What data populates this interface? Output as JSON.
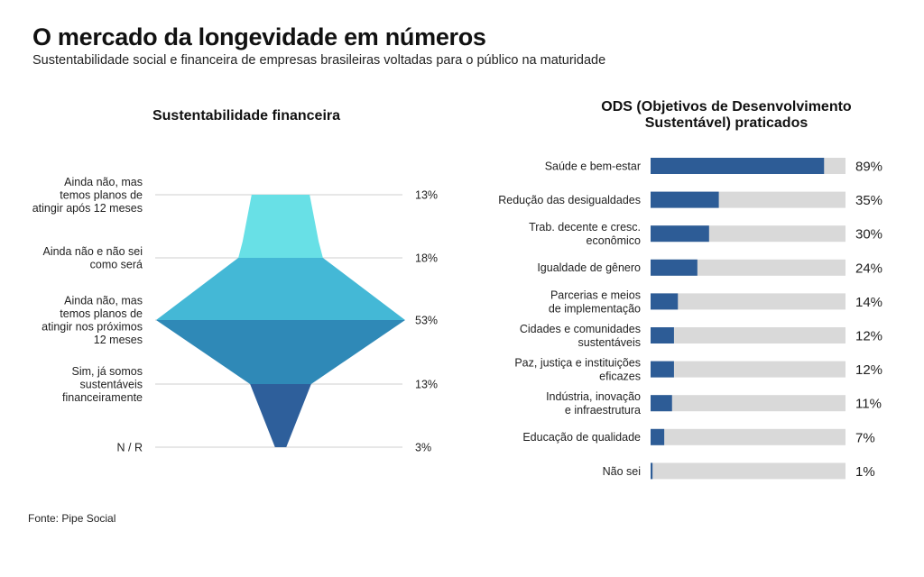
{
  "header": {
    "title": "O mercado da longevidade em números",
    "subtitle": "Sustentabilidade social e financeira de empresas brasileiras voltadas para o público na maturidade"
  },
  "footer": {
    "source": "Fonte: Pipe Social"
  },
  "colors": {
    "funnel": [
      "#68e0e6",
      "#44b8d6",
      "#2f89b7",
      "#2e5f9b"
    ],
    "bar_fill": "#2d5c96",
    "bar_track": "#d9d9d9",
    "gridline": "#cfcfcf"
  },
  "chart_data": [
    {
      "type": "funnel",
      "title": "Sustentabilidade financeira",
      "unit": "%",
      "categories": [
        [
          "Ainda não, mas",
          "temos planos de",
          "atingir após 12 meses"
        ],
        [
          "Ainda não e não sei",
          "como será"
        ],
        [
          "Ainda não, mas",
          "temos planos de",
          "atingir nos próximos",
          "12 meses"
        ],
        [
          "Sim, já somos",
          "sustentáveis",
          "financeiramente"
        ],
        [
          "N / R"
        ]
      ],
      "values": [
        13,
        18,
        53,
        13,
        3
      ],
      "value_labels": [
        "13%",
        "18%",
        "53%",
        "13%",
        "3%"
      ]
    },
    {
      "type": "bar",
      "orientation": "horizontal",
      "title_lines": [
        "ODS (Objetivos de Desenvolvimento",
        "Sustentável) praticados"
      ],
      "unit": "%",
      "xlim": [
        0,
        100
      ],
      "categories": [
        [
          "Saúde e bem-estar"
        ],
        [
          "Redução das desigualdades"
        ],
        [
          "Trab. decente e cresc.",
          "econômico"
        ],
        [
          "Igualdade de gênero"
        ],
        [
          "Parcerias e meios",
          "de implementação"
        ],
        [
          "Cidades e comunidades",
          "sustentáveis"
        ],
        [
          "Paz, justiça e instituições",
          "eficazes"
        ],
        [
          "Indústria, inovação",
          "e infraestrutura"
        ],
        [
          "Educação de qualidade"
        ],
        [
          "Não sei"
        ]
      ],
      "values": [
        89,
        35,
        30,
        24,
        14,
        12,
        12,
        11,
        7,
        1
      ],
      "value_labels": [
        "89%",
        "35%",
        "30%",
        "24%",
        "14%",
        "12%",
        "12%",
        "11%",
        "7%",
        "1%"
      ]
    }
  ]
}
